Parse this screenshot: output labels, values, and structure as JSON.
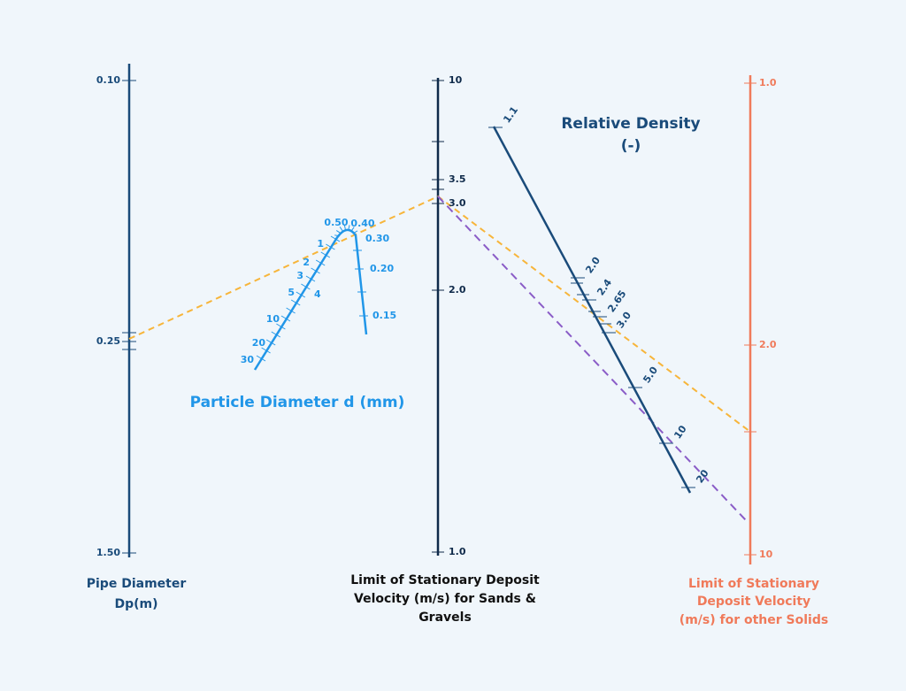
{
  "pipe_diameter": {
    "title": [
      "Pipe Diameter",
      "Dp(m)"
    ],
    "labels": [
      "0.10",
      "0.25",
      "1.50"
    ]
  },
  "sands_velocity": {
    "title": [
      "Limit of Stationary Deposit",
      "Velocity (m/s) for Sands &",
      "Gravels"
    ],
    "labels": [
      "10",
      "3.5",
      "3.0",
      "2.0",
      "1.0"
    ]
  },
  "other_velocity": {
    "title": [
      "Limit of Stationary",
      "Deposit Velocity",
      "(m/s) for other Solids"
    ],
    "labels": [
      "1.0",
      "2.0",
      "10"
    ]
  },
  "particle_diameter": {
    "title": "Particle Diameter d (mm)",
    "labels": [
      "0.50",
      "0.40",
      "0.30",
      "0.20",
      "0.15",
      "1",
      "2",
      "3",
      "4",
      "5",
      "10",
      "20",
      "30"
    ]
  },
  "relative_density": {
    "title": [
      "Relative Density",
      "(-)"
    ],
    "labels": [
      "1.1",
      "2.0",
      "2.4",
      "2.65",
      "3.0",
      "5.0",
      "10",
      "20"
    ]
  }
}
